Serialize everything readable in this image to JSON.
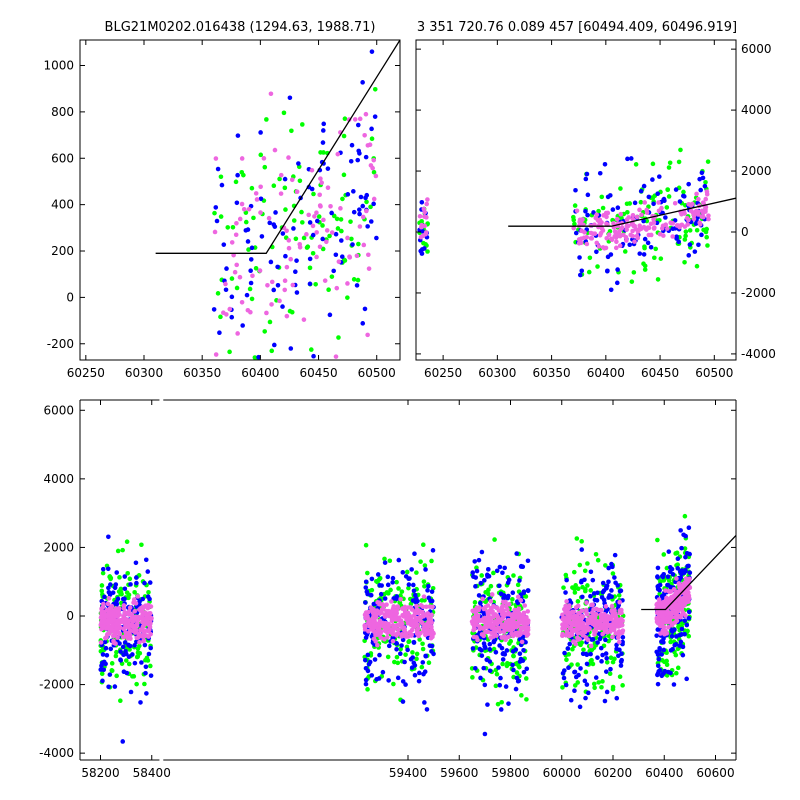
{
  "colors": {
    "green": "#00ff00",
    "blue": "#0000ff",
    "pink": "#ee66e0",
    "model": "#000000"
  },
  "chart_data": [
    {
      "type": "scatter",
      "title": "BLG21M0202.016438 (1294.63, 1988.71)",
      "xlabel": "",
      "ylabel": "",
      "xlim": [
        60245,
        60520
      ],
      "ylim": [
        -270,
        1110
      ],
      "xticks": [
        60250,
        60300,
        60350,
        60400,
        60450,
        60500
      ],
      "yticks": [
        -200,
        0,
        200,
        400,
        600,
        800,
        1000
      ],
      "grid": false,
      "series": [
        {
          "name": "",
          "color": "green",
          "x_range": [
            60360,
            60500
          ],
          "y_center": 350,
          "y_spread": 300
        },
        {
          "name": "",
          "color": "blue",
          "x_range": [
            60375,
            60500
          ],
          "y_center": 420,
          "y_spread": 380
        },
        {
          "name": "",
          "color": "pink",
          "x_range": [
            60360,
            60500
          ],
          "y_center": 450,
          "y_spread": 320
        }
      ],
      "model_line": {
        "x": [
          60310,
          60405,
          60520
        ],
        "y": [
          190,
          190,
          1110
        ]
      }
    },
    {
      "type": "scatter",
      "title": "3 351 720.76 0.089 457 [60494.409, 60496.919]",
      "xlabel": "",
      "ylabel": "",
      "xlim": [
        60225,
        60520
      ],
      "ylim": [
        -4200,
        6300
      ],
      "xticks": [
        60250,
        60300,
        60350,
        60400,
        60450,
        60500
      ],
      "yticks": [
        -4000,
        -2000,
        0,
        2000,
        4000,
        6000
      ],
      "yaxis_side": "right",
      "grid": false,
      "model_line": {
        "x": [
          60310,
          60405,
          60520
        ],
        "y": [
          190,
          190,
          1110
        ]
      }
    },
    {
      "type": "scatter",
      "title": "",
      "xlabel": "",
      "ylabel": "",
      "xlim": [
        58120,
        60680
      ],
      "ylim": [
        -4200,
        6300
      ],
      "xticks": [
        58200,
        58400,
        59400,
        59600,
        59800,
        60000,
        60200,
        60400,
        60600
      ],
      "yticks": [
        -4000,
        -2000,
        0,
        2000,
        4000,
        6000
      ],
      "grid": false,
      "seasons": [
        [
          58200,
          58400
        ],
        [
          59230,
          59500
        ],
        [
          59650,
          59870
        ],
        [
          60000,
          60240
        ],
        [
          60370,
          60500
        ]
      ],
      "model_line": {
        "x": [
          60310,
          60405,
          60680
        ],
        "y": [
          190,
          190,
          2350
        ]
      }
    }
  ]
}
